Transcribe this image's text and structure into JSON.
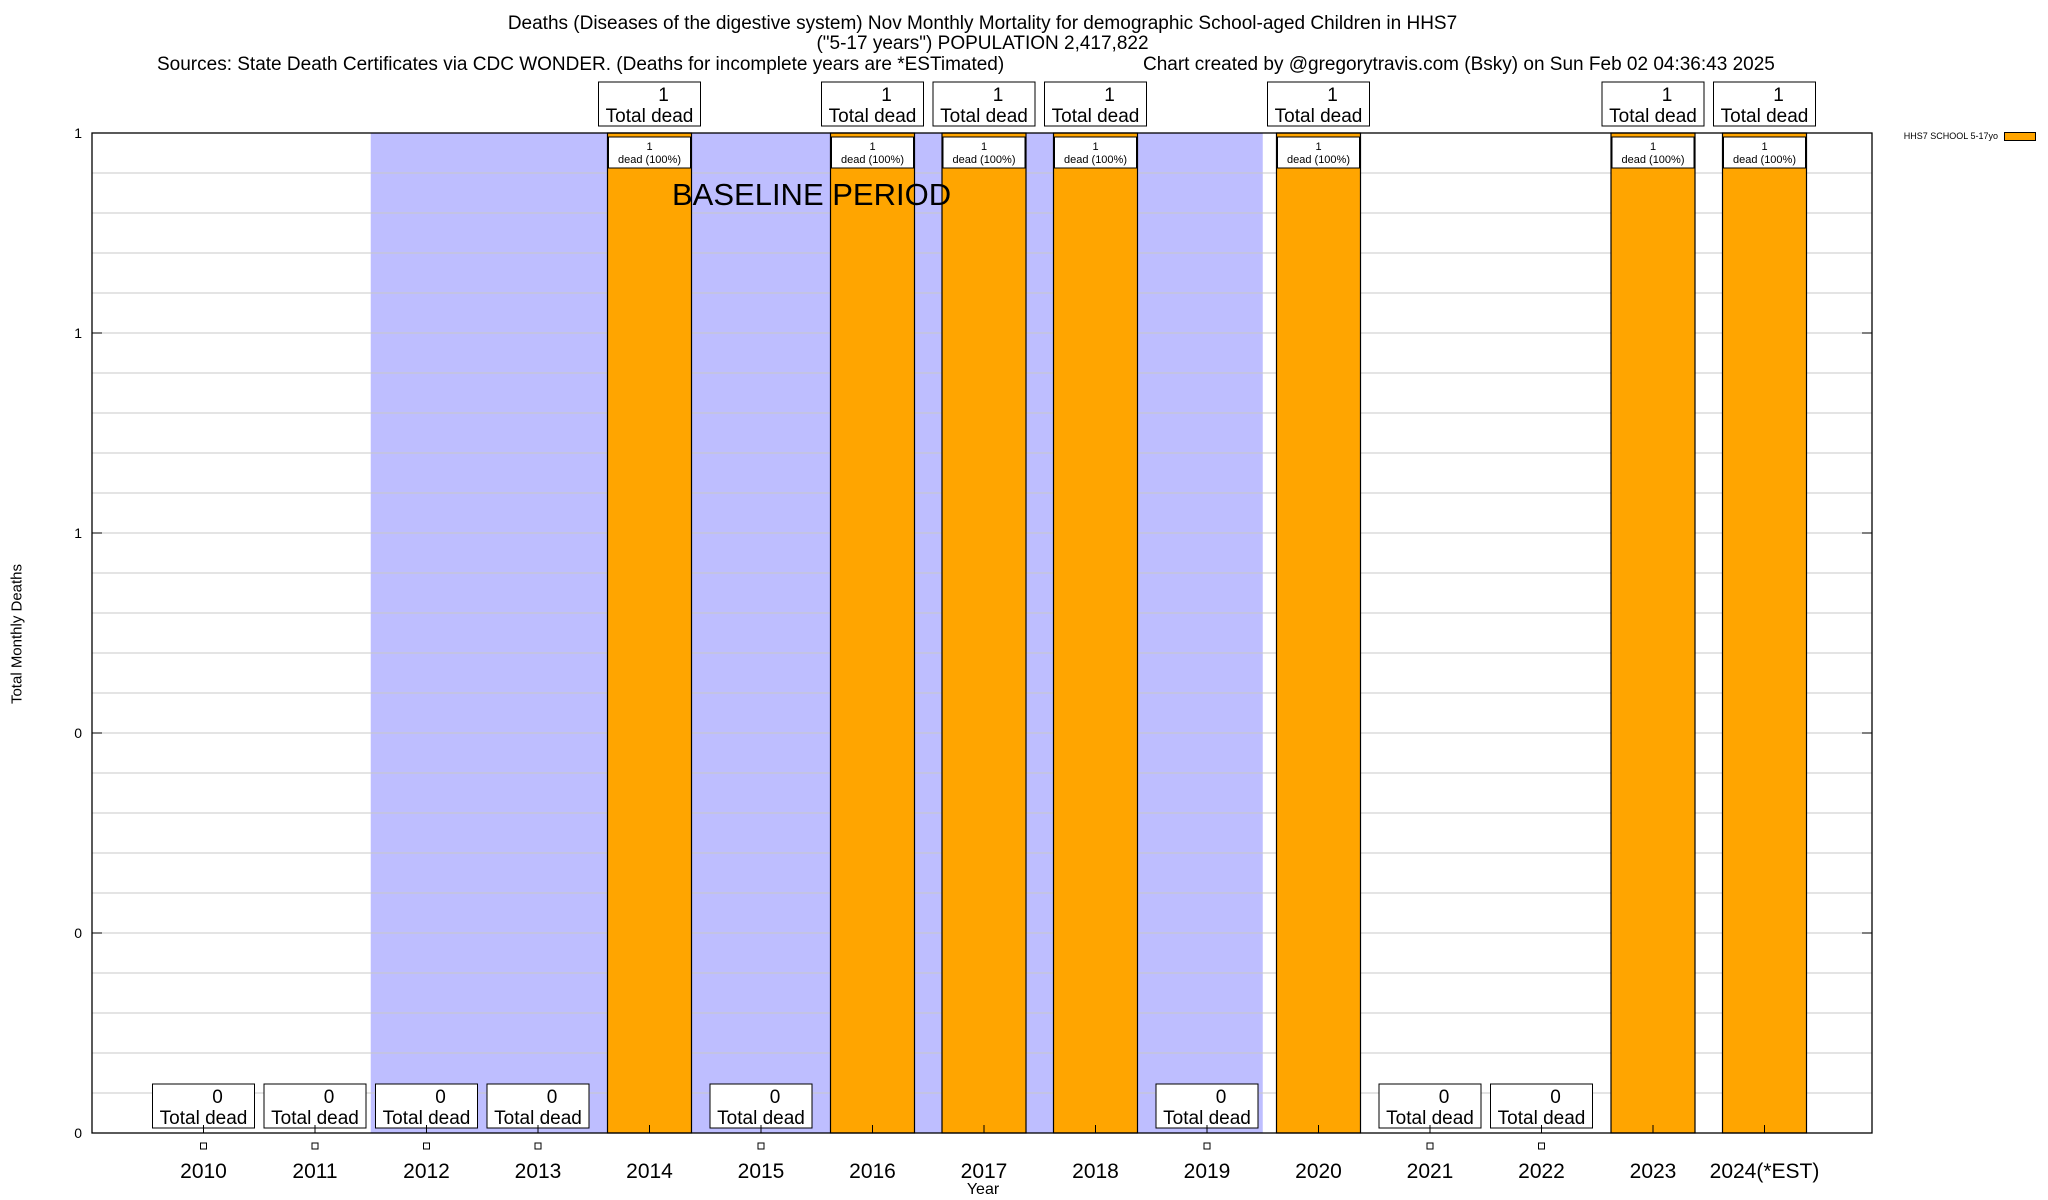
{
  "chart_data": {
    "type": "bar",
    "title": "Deaths (Diseases of the digestive system) Nov Monthly Mortality for demographic School-aged Children in HHS7",
    "subtitle": "(\"5-17 years\") POPULATION 2,417,822",
    "source": "Sources: State Death Certificates via CDC WONDER. (Deaths for incomplete years are *ESTimated)",
    "credit": "Chart created by @gregorytravis.com (Bsky) on Sun Feb 02 04:36:43 2025",
    "xlabel": "Year",
    "ylabel": "Total Monthly Deaths",
    "ylim": [
      0,
      1
    ],
    "y_tick_labels": [
      "0",
      "0",
      "0",
      "1",
      "1",
      "1"
    ],
    "grid": true,
    "legend": {
      "label": "HHS7 SCHOOL 5-17yo",
      "color": "#ffa500",
      "position": "top-right"
    },
    "categories": [
      "2010",
      "2011",
      "2012",
      "2013",
      "2014",
      "2015",
      "2016",
      "2017",
      "2018",
      "2019",
      "2020",
      "2021",
      "2022",
      "2023",
      "2024(*EST)"
    ],
    "series": [
      {
        "name": "HHS7 SCHOOL 5-17yo",
        "values": [
          0,
          0,
          0,
          0,
          1,
          0,
          1,
          1,
          1,
          0,
          1,
          0,
          0,
          1,
          1
        ]
      }
    ],
    "total_label_unit": "Total dead",
    "bar_label_text": "dead (100%)",
    "baseline_period": {
      "label": "BASELINE PERIOD",
      "start": "2012",
      "end": "2019"
    },
    "colors": {
      "bar": "#ffa500",
      "baseline": "#bebeff",
      "grid": "#c8c8c8"
    }
  }
}
